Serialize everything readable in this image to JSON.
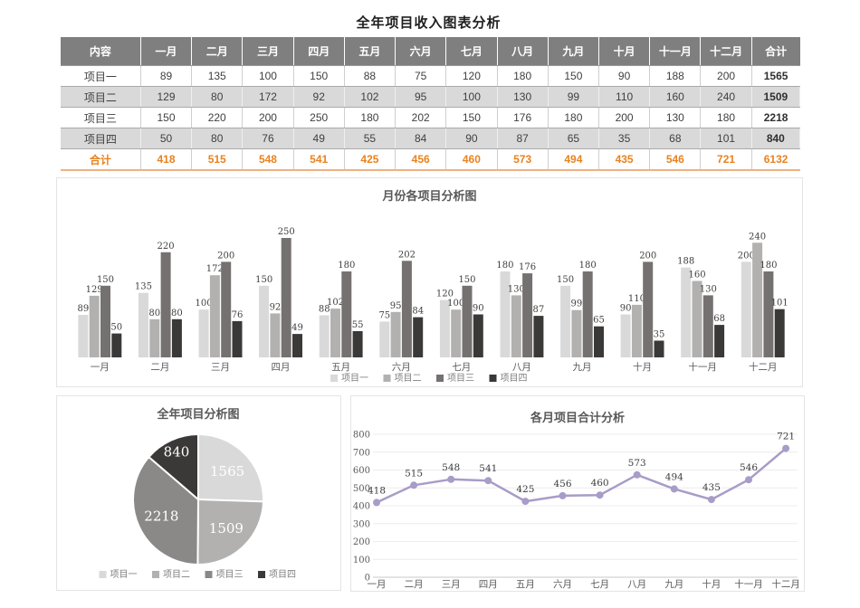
{
  "page": {
    "title": "全年项目收入图表分析"
  },
  "months": [
    "一月",
    "二月",
    "三月",
    "四月",
    "五月",
    "六月",
    "七月",
    "八月",
    "九月",
    "十月",
    "十一月",
    "十二月"
  ],
  "table": {
    "headers": [
      "内容",
      "一月",
      "二月",
      "三月",
      "四月",
      "五月",
      "六月",
      "七月",
      "八月",
      "九月",
      "十月",
      "十一月",
      "十二月",
      "合计"
    ],
    "rows": [
      {
        "label": "项目一",
        "values": [
          89,
          135,
          100,
          150,
          88,
          75,
          120,
          180,
          150,
          90,
          188,
          200
        ],
        "total": 1565
      },
      {
        "label": "项目二",
        "values": [
          129,
          80,
          172,
          92,
          102,
          95,
          100,
          130,
          99,
          110,
          160,
          240
        ],
        "total": 1509
      },
      {
        "label": "项目三",
        "values": [
          150,
          220,
          200,
          250,
          180,
          202,
          150,
          176,
          180,
          200,
          130,
          180
        ],
        "total": 2218
      },
      {
        "label": "项目四",
        "values": [
          50,
          80,
          76,
          49,
          55,
          84,
          90,
          87,
          65,
          35,
          68,
          101
        ],
        "total": 840
      }
    ],
    "total_row": {
      "label": "合计",
      "values": [
        418,
        515,
        548,
        541,
        425,
        456,
        460,
        573,
        494,
        435,
        546,
        721
      ],
      "total": 6132
    },
    "colors": {
      "header_bg": "#7f7f7f",
      "header_text": "#ffffff",
      "stripe": "#d9d9d9",
      "total_text": "#e8821f"
    }
  },
  "chart_data": [
    {
      "type": "bar",
      "title": "月份各项目分析图",
      "categories": [
        "一月",
        "二月",
        "三月",
        "四月",
        "五月",
        "六月",
        "七月",
        "八月",
        "九月",
        "十月",
        "十一月",
        "十二月"
      ],
      "series": [
        {
          "name": "项目一",
          "color": "#d9d9d9",
          "values": [
            89,
            135,
            100,
            150,
            88,
            75,
            120,
            180,
            150,
            90,
            188,
            200
          ]
        },
        {
          "name": "项目二",
          "color": "#b3b0b0",
          "values": [
            129,
            80,
            172,
            92,
            102,
            95,
            100,
            130,
            99,
            110,
            160,
            240
          ]
        },
        {
          "name": "项目三",
          "color": "#767171",
          "values": [
            150,
            220,
            200,
            250,
            180,
            202,
            150,
            176,
            180,
            200,
            130,
            180
          ]
        },
        {
          "name": "项目四",
          "color": "#3b3838",
          "values": [
            50,
            80,
            76,
            49,
            55,
            84,
            90,
            87,
            65,
            35,
            68,
            101
          ]
        }
      ],
      "ylim": [
        0,
        250
      ],
      "grid": false,
      "data_labels": true,
      "legend_position": "bottom"
    },
    {
      "type": "pie",
      "title": "全年项目分析图",
      "labels": [
        "项目一",
        "项目二",
        "项目三",
        "项目四"
      ],
      "values": [
        1565,
        1509,
        2218,
        840
      ],
      "colors": [
        "#d9d9d9",
        "#b3b0b0",
        "#8b8888",
        "#3b3838"
      ],
      "start_angle_deg": 0,
      "direction": "clockwise",
      "data_labels": "values",
      "label_color": "#ffffff",
      "legend_position": "bottom"
    },
    {
      "type": "line",
      "title": "各月项目合计分析",
      "x": [
        "一月",
        "二月",
        "三月",
        "四月",
        "五月",
        "六月",
        "七月",
        "八月",
        "九月",
        "十月",
        "十一月",
        "十二月"
      ],
      "series": [
        {
          "name": "合计",
          "color": "#a89cc8",
          "values": [
            418,
            515,
            548,
            541,
            425,
            456,
            460,
            573,
            494,
            435,
            546,
            721
          ]
        }
      ],
      "ylim": [
        0,
        800
      ],
      "ytick_interval": 100,
      "yticks": [
        0,
        100,
        200,
        300,
        400,
        500,
        600,
        700,
        800
      ],
      "grid": true,
      "data_labels": true,
      "legend_position": "none"
    }
  ]
}
